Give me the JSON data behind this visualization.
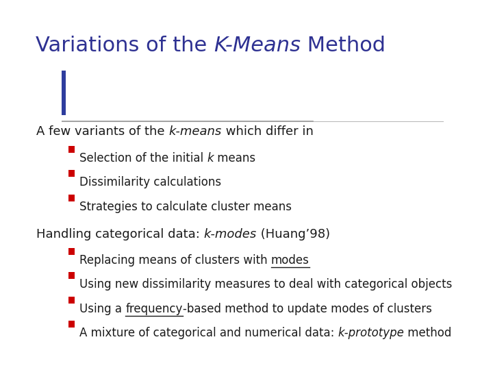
{
  "title_regular1": "Variations of the ",
  "title_italic": "K-Means",
  "title_regular2": " Method",
  "title_color": "#2e3192",
  "title_fontsize": 22,
  "bg_color": "#ffffff",
  "bullet1_color": "#1a1a8c",
  "bullet2_color": "#cc0000",
  "body_color": "#1a1a1a",
  "body_fontsize": 13,
  "sub_fontsize": 12,
  "dec_yellow": "#f5c400",
  "dec_pink": "#e05870",
  "dec_blue": "#2e3d9e"
}
